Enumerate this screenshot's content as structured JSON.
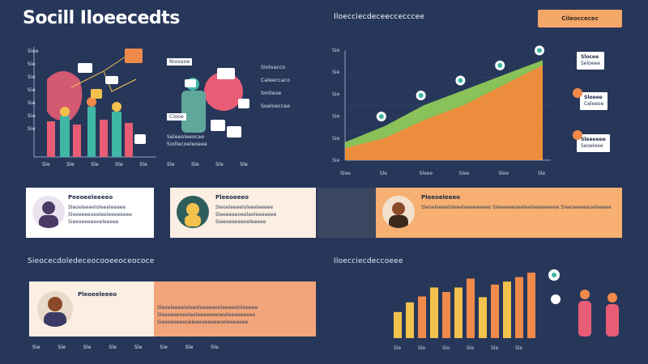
{
  "header": {
    "title": "Socill Iloeecedts",
    "right_heading": "Iloecciecdeceeccecccee",
    "action_button": "Cileoccecec"
  },
  "top_left_panel": {
    "axis_labels": [
      "Siee",
      "Sie",
      "Sie",
      "Sie",
      "Sie",
      "Sie",
      "Sie"
    ],
    "x_labels": [
      "Sle",
      "Sle",
      "Sle",
      "Sle",
      "Sle"
    ],
    "notes": [
      "Nioosoe",
      "Ciooe",
      "Sioloacco",
      "Caleeccaco",
      "Smlleoe",
      "Soeloeccee"
    ],
    "bottom_notes": [
      "Seleeoleeocee",
      "Siollecoeleoeee"
    ],
    "x_labels_mid": [
      "Sle",
      "Sle",
      "Sle",
      "Sle"
    ],
    "colors": {
      "pink": "#e85d75",
      "teal": "#3fb7a5",
      "orange": "#f08a4b",
      "gold": "#f3c24d"
    }
  },
  "chart_data": [
    {
      "type": "area",
      "title": "Iloecciecdeceeccecccee",
      "x": [
        "Slee",
        "Sle",
        "Sleee",
        "Slee",
        "Slee",
        "Sle"
      ],
      "series": [
        {
          "values": [
            18,
            34,
            55,
            70,
            85,
            100
          ],
          "color": "#8ec95a"
        },
        {
          "values": [
            12,
            22,
            40,
            55,
            75,
            95
          ],
          "color": "#f08a3c"
        }
      ],
      "y_labels": [
        "Sie",
        "Sie",
        "Sie",
        "Sie",
        "Sie",
        "Sie"
      ],
      "ylim": [
        0,
        110
      ]
    },
    {
      "type": "bar",
      "title": "Iloecciecdeccoeee",
      "categories": [
        "Sle",
        "Sle",
        "Sle",
        "Sle",
        "Sle",
        "Sle",
        "Sle",
        "Sle",
        "Sle",
        "Sle",
        "Sle",
        "Sle"
      ],
      "values": [
        35,
        48,
        56,
        68,
        62,
        68,
        80,
        55,
        72,
        76,
        82,
        88
      ],
      "colors": [
        "#f3c24d",
        "#f3c24d",
        "#f08a4b",
        "#f3c24d",
        "#f08a4b",
        "#f3c24d",
        "#f08a4b",
        "#f3c24d",
        "#f08a4b",
        "#f3c24d",
        "#f08a4b",
        "#f08a4b"
      ],
      "ylim": [
        0,
        100
      ]
    }
  ],
  "right_labels": [
    {
      "title": "Slocee",
      "text": "Seloeee"
    },
    {
      "title": "Sloeee",
      "text": "Celeeoe"
    },
    {
      "title": "Sleeeeee",
      "text": "Seoeleee"
    }
  ],
  "cards": [
    {
      "title": "Peeoeeleeeeo",
      "body": "Sleoeleeeeloleeeleeeee Sleeeeeeoeeleeleeeeeeee Sieeoeeeeeoeleeeee"
    },
    {
      "title": "Pleeoeeeo",
      "body": "Sleoeleeeeloleeeleeeee Sleeeeeeoeeleeleeeeeee Sieeoeeeeeoeleeeee"
    },
    {
      "title": "Pleeoeleeeo",
      "body": "Sleoeleeeeloleeeleeeeeeeee Sleeeeeeoeeleeleeeeeeeee Sieeoeeeeeoeleeeee"
    }
  ],
  "bottom_section": {
    "left_heading": "Sieocecdoledeceocooeeoceococe",
    "card_title": "Pleoeeleeeo",
    "card_body": "Sleoeleeeeloleeeleeeeeeeleeeeeloleeeee Sleeeeeeoeeleeleeeeeeeoeeleeeeeeeee Sieeoeeeeeoeleeeeeeeeeoeleeeeeee",
    "x_labels": [
      "Sie",
      "Sle",
      "Sle",
      "Sle",
      "Sle",
      "Sie",
      "Sle",
      "Sle"
    ]
  }
}
